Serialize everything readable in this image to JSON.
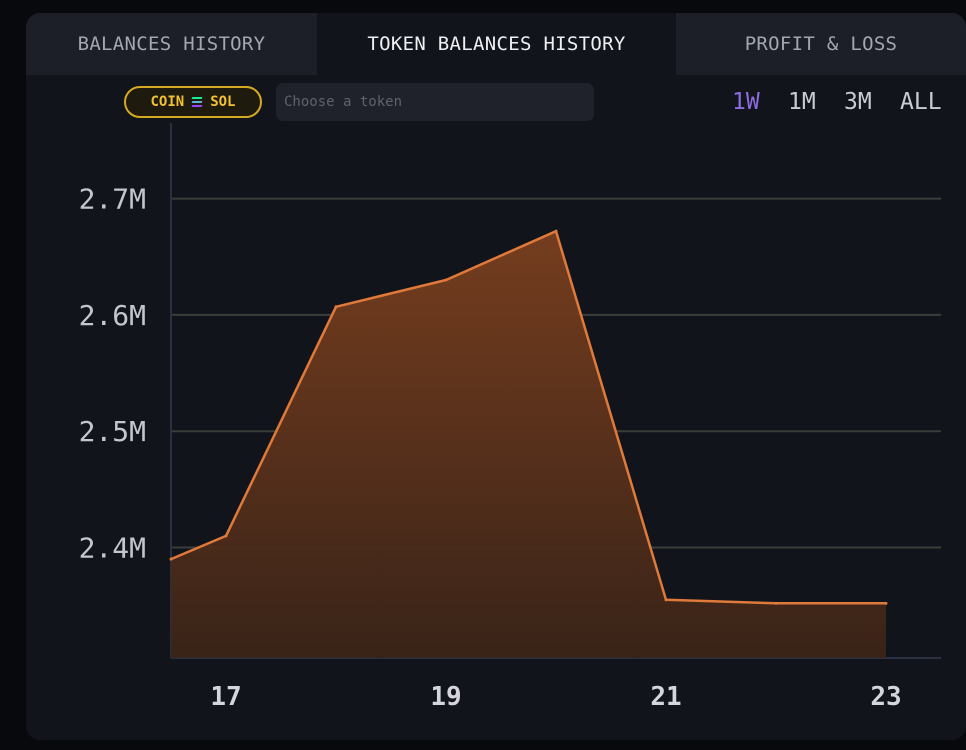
{
  "tabs": [
    {
      "label": "BALANCES HISTORY",
      "active": false
    },
    {
      "label": "TOKEN BALANCES HISTORY",
      "active": true
    },
    {
      "label": "PROFIT & LOSS",
      "active": false
    }
  ],
  "token_filter": {
    "badge_left": "COIN",
    "badge_right": "SOL",
    "badge_icon": "solana-logo-icon",
    "placeholder": "Choose a token",
    "value": ""
  },
  "time_ranges": [
    {
      "label": "1W",
      "active": true
    },
    {
      "label": "1M",
      "active": false
    },
    {
      "label": "3M",
      "active": false
    },
    {
      "label": "ALL",
      "active": false
    }
  ],
  "colors": {
    "accent": "#8d6be0",
    "series_line": "#e07a3a",
    "series_fill": "#7a3f1e",
    "badge": "#f2c233"
  },
  "chart_data": {
    "type": "area",
    "x": [
      16.5,
      17,
      18,
      19,
      20,
      21,
      22,
      23
    ],
    "values": [
      2390000,
      2410000,
      2607000,
      2630000,
      2672000,
      2355000,
      2352000,
      2352000
    ],
    "x_ticks": [
      17,
      19,
      21,
      23
    ],
    "x_tick_labels": [
      "17",
      "19",
      "21",
      "23"
    ],
    "y_ticks": [
      2400000,
      2500000,
      2600000,
      2700000
    ],
    "y_tick_labels": [
      "2.4M",
      "2.5M",
      "2.6M",
      "2.7M"
    ],
    "xlim": [
      16.5,
      23.5
    ],
    "ylim": [
      2305000,
      2765000
    ],
    "grid": true,
    "title": "",
    "xlabel": "",
    "ylabel": ""
  }
}
